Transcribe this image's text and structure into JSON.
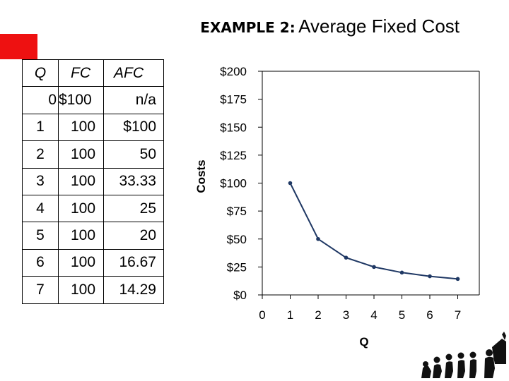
{
  "slide": {
    "title_prefix": "EXAMPLE 2:",
    "title_main": "Average Fixed Cost"
  },
  "table": {
    "headers": [
      "Q",
      "FC",
      "AFC"
    ],
    "rows": [
      [
        "0",
        "$100",
        "n/a"
      ],
      [
        "1",
        "100",
        "$100"
      ],
      [
        "2",
        "100",
        "50"
      ],
      [
        "3",
        "100",
        "33.33"
      ],
      [
        "4",
        "100",
        "25"
      ],
      [
        "5",
        "100",
        "20"
      ],
      [
        "6",
        "100",
        "16.67"
      ],
      [
        "7",
        "100",
        "14.29"
      ]
    ]
  },
  "chart_data": {
    "type": "line",
    "title": "",
    "xlabel": "Q",
    "ylabel": "Costs",
    "x_ticks": [
      "0",
      "1",
      "2",
      "3",
      "4",
      "5",
      "6",
      "7"
    ],
    "y_ticks": [
      "$0",
      "$25",
      "$50",
      "$75",
      "$100",
      "$125",
      "$150",
      "$175",
      "$200"
    ],
    "xlim": [
      0,
      7.5
    ],
    "ylim": [
      0,
      200
    ],
    "grid": false,
    "series": [
      {
        "x": [
          1,
          2,
          3,
          4,
          5,
          6,
          7
        ],
        "y": [
          100,
          50,
          33.33,
          25,
          20,
          16.67,
          14.29
        ],
        "color": "#1f3864"
      }
    ]
  },
  "colors": {
    "accent_box": "#ee1111",
    "line": "#1f3864"
  }
}
